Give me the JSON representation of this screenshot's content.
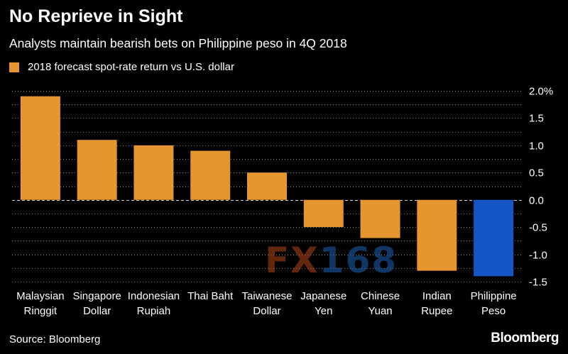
{
  "title": "No Reprieve in Sight",
  "subtitle": "Analysts maintain bearish bets on Philippine peso in 4Q 2018",
  "source": "Source: Bloomberg",
  "brand": "Bloomberg",
  "watermark": {
    "part1": "FX",
    "part2": "168"
  },
  "colors": {
    "background": "#000000",
    "bar": "#e6962e",
    "highlight": "#1456c8",
    "grid": "#8a8a8a",
    "text": "#ffffff"
  },
  "chart_data": {
    "type": "bar",
    "legend": {
      "label": "2018 forecast spot-rate return vs U.S. dollar",
      "position": "top-left"
    },
    "categories": [
      [
        "Malaysian",
        "Ringgit"
      ],
      [
        "Singapore",
        "Dollar"
      ],
      [
        "Indonesian",
        "Rupiah"
      ],
      [
        "Thai Baht"
      ],
      [
        "Taiwanese",
        "Dollar"
      ],
      [
        "Japanese",
        "Yen"
      ],
      [
        "Chinese",
        "Yuan"
      ],
      [
        "Indian",
        "Rupee"
      ],
      [
        "Philippine",
        "Peso"
      ]
    ],
    "values": [
      1.9,
      1.1,
      1.0,
      0.9,
      0.5,
      -0.5,
      -0.7,
      -1.3,
      -1.4
    ],
    "highlight_index": 8,
    "ylim": [
      -1.5,
      2.0
    ],
    "yticks": [
      {
        "value": 2.0,
        "label": "2.0%"
      },
      {
        "value": 1.5,
        "label": "1.5"
      },
      {
        "value": 1.0,
        "label": "1.0"
      },
      {
        "value": 0.5,
        "label": "0.5"
      },
      {
        "value": 0.0,
        "label": "0.0"
      },
      {
        "value": -0.5,
        "label": "-0.5"
      },
      {
        "value": -1.0,
        "label": "-1.0"
      },
      {
        "value": -1.5,
        "label": "-1.5"
      }
    ],
    "minor_grid": true,
    "y_axis_side": "right"
  }
}
